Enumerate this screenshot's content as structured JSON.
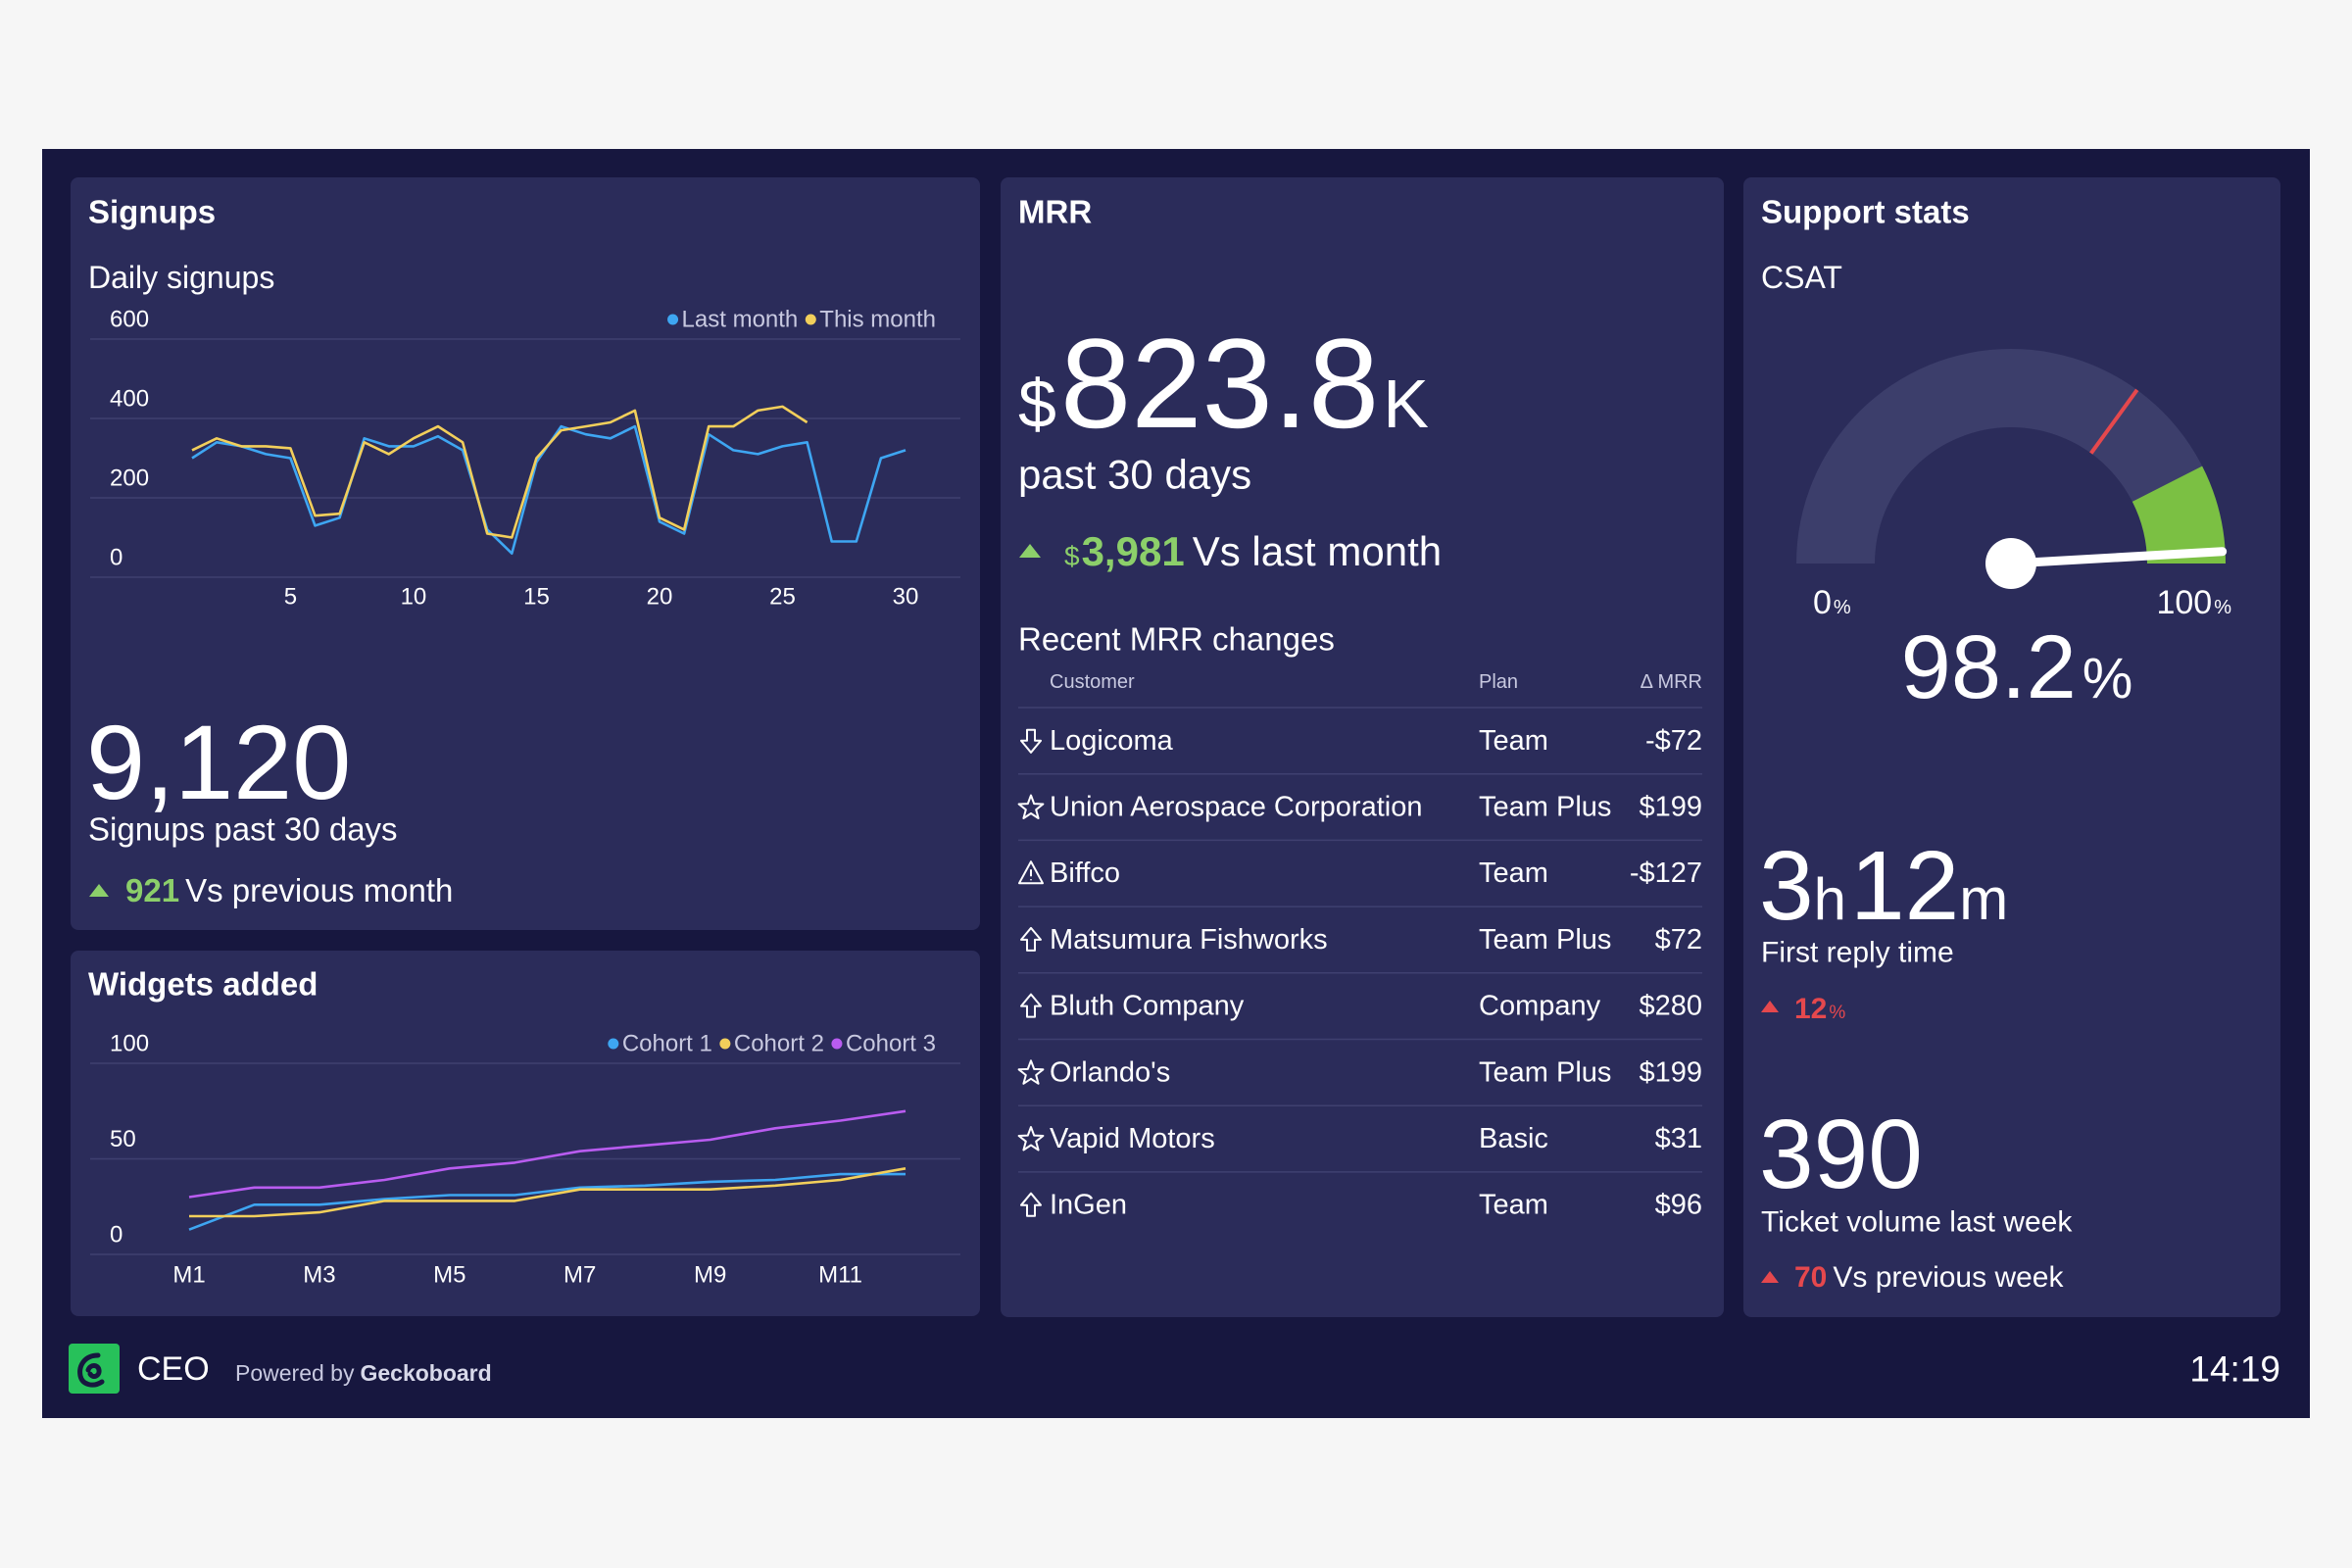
{
  "chart_data": [
    {
      "type": "line",
      "title": "Daily signups",
      "x": [
        1,
        2,
        3,
        4,
        5,
        6,
        7,
        8,
        9,
        10,
        11,
        12,
        13,
        14,
        15,
        16,
        17,
        18,
        19,
        20,
        21,
        22,
        23,
        24,
        25,
        26,
        27,
        28,
        29,
        30
      ],
      "xlim": [
        1,
        30
      ],
      "xticks": [
        5,
        10,
        15,
        20,
        25,
        30
      ],
      "ylim": [
        0,
        600
      ],
      "yticks": [
        0,
        200,
        400,
        600
      ],
      "grid": true,
      "legend": "top-right",
      "series": [
        {
          "name": "Last month",
          "color": "#3ea6f2",
          "values": [
            300,
            340,
            330,
            310,
            300,
            130,
            150,
            350,
            330,
            330,
            355,
            320,
            120,
            60,
            290,
            380,
            360,
            350,
            380,
            140,
            110,
            360,
            320,
            310,
            330,
            340,
            90,
            90,
            300,
            320
          ]
        },
        {
          "name": "This month",
          "color": "#f2cf5b",
          "values": [
            320,
            350,
            330,
            330,
            325,
            155,
            160,
            340,
            310,
            350,
            380,
            340,
            110,
            100,
            300,
            370,
            380,
            390,
            420,
            150,
            120,
            380,
            380,
            420,
            430,
            390,
            null,
            null,
            null,
            null
          ]
        }
      ]
    },
    {
      "type": "line",
      "title": "Widgets added",
      "categories": [
        "M1",
        null,
        "M3",
        null,
        "M5",
        null,
        "M7",
        null,
        "M9",
        null,
        "M11",
        null
      ],
      "ylim": [
        0,
        100
      ],
      "yticks": [
        0,
        50,
        100
      ],
      "grid": true,
      "legend": "top-right",
      "series": [
        {
          "name": "Cohort 1",
          "color": "#3ea6f2",
          "values": [
            13,
            26,
            26,
            29,
            31,
            31,
            35,
            36,
            38,
            39,
            42,
            42
          ]
        },
        {
          "name": "Cohort 2",
          "color": "#f2cf5b",
          "values": [
            20,
            20,
            22,
            28,
            28,
            28,
            34,
            34,
            34,
            36,
            39,
            45
          ]
        },
        {
          "name": "Cohort 3",
          "color": "#b95cf0",
          "values": [
            30,
            35,
            35,
            39,
            45,
            48,
            54,
            57,
            60,
            66,
            70,
            75
          ]
        }
      ]
    }
  ],
  "signups": {
    "title": "Signups",
    "total": "9,120",
    "total_label": "Signups past 30 days",
    "change": "921",
    "change_label": "Vs previous month"
  },
  "mrr": {
    "title": "MRR",
    "currency": "$",
    "value": "823.8",
    "suffix": "K",
    "period": "past 30 days",
    "change": "3,981",
    "change_label": "Vs last month",
    "table": {
      "title": "Recent MRR changes",
      "header": [
        "Customer",
        "Plan",
        "Δ MRR"
      ],
      "rows": [
        [
          "Logicoma",
          "Team",
          "-$72"
        ],
        [
          "Union Aerospace Corporation",
          "Team Plus",
          "$199"
        ],
        [
          "Biffco",
          "Team",
          "-$127"
        ],
        [
          "Matsumura Fishworks",
          "Team Plus",
          "$72"
        ],
        [
          "Bluth Company",
          "Company",
          "$280"
        ],
        [
          "Orlando's",
          "Team Plus",
          "$199"
        ],
        [
          "Vapid Motors",
          "Basic",
          "$31"
        ],
        [
          "InGen",
          "Team",
          "$96"
        ]
      ]
    }
  },
  "support": {
    "title": "Support stats",
    "csat": {
      "title": "CSAT",
      "value": 98.2,
      "unit": "%",
      "min": 0,
      "max": 100,
      "green_from": 85,
      "marker": 70
    },
    "first_reply": {
      "parts": [
        "3",
        "h",
        "12",
        "m"
      ],
      "label": "First reply time",
      "change": "12",
      "change_unit": "%"
    },
    "tickets": {
      "value": "390",
      "label": "Ticket volume last week",
      "change": "70",
      "change_label": "Vs previous week"
    }
  },
  "footer": {
    "name": "CEO",
    "powered": "Powered by",
    "brand": "Geckoboard",
    "time": "14:19"
  }
}
